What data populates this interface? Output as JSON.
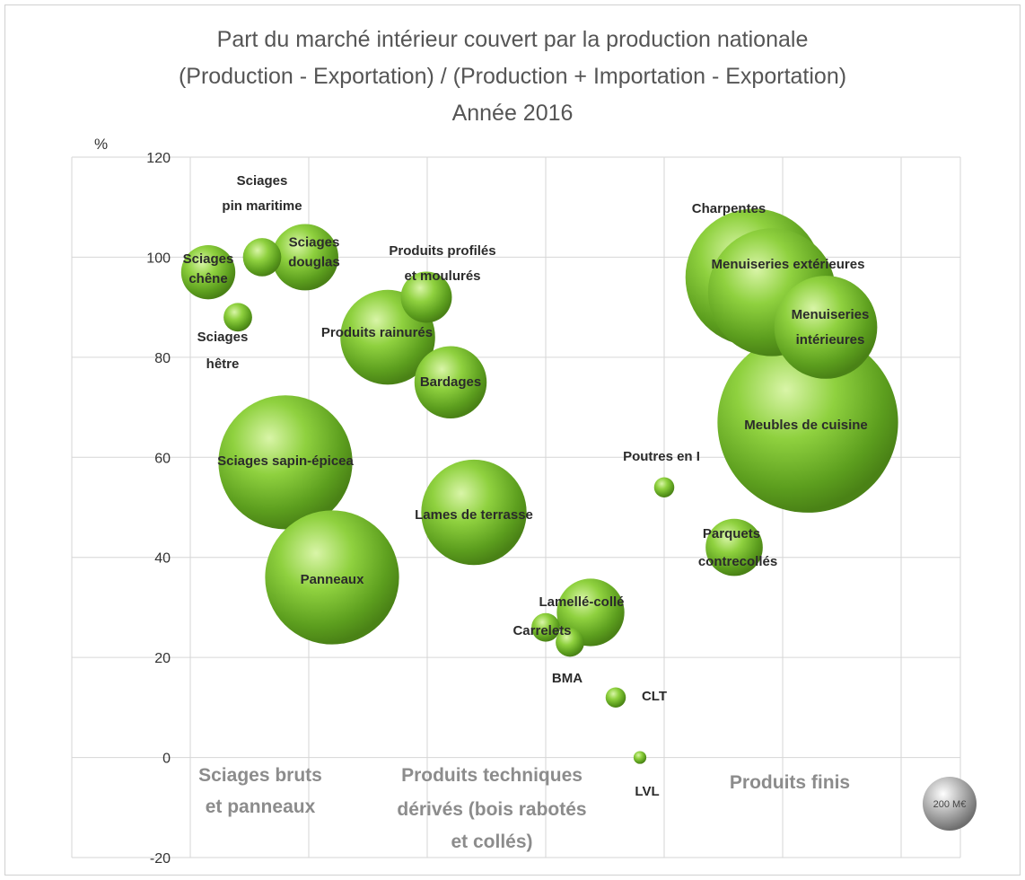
{
  "chart_data": {
    "type": "bubble",
    "title": [
      "Part du marché intérieur couvert par la production nationale",
      "(Production - Exportation) / (Production + Importation - Exportation)",
      "Année 2016"
    ],
    "ylabel": "%",
    "ylim": [
      -20,
      120
    ],
    "yticks": [
      -20,
      0,
      20,
      40,
      60,
      80,
      100,
      120
    ],
    "grid": true,
    "groups": [
      {
        "label": [
          "Sciages bruts",
          "et panneaux"
        ]
      },
      {
        "label": [
          "Produits techniques",
          "dérivés (bois rabotés",
          "et collés)"
        ]
      },
      {
        "label": [
          "Produits finis"
        ]
      }
    ],
    "size_legend": "200 M€",
    "bubble_color": "#7ec832",
    "legend_color": "#9a9a9a",
    "points": [
      {
        "label": [
          "Sciages",
          "chêne"
        ],
        "y": 97,
        "size": 180
      },
      {
        "label": [
          "Sciages",
          "pin maritime"
        ],
        "y": 100,
        "size": 90
      },
      {
        "label": [
          "Sciages",
          "douglas"
        ],
        "y": 100,
        "size": 270
      },
      {
        "label": [
          "Sciages",
          "hêtre"
        ],
        "y": 88,
        "size": 50
      },
      {
        "label": [
          "Sciages sapin-épicea"
        ],
        "y": 59,
        "size": 1100
      },
      {
        "label": [
          "Panneaux"
        ],
        "y": 36,
        "size": 1100
      },
      {
        "label": [
          "Produits profilés",
          "et moulurés"
        ],
        "y": 92,
        "size": 160
      },
      {
        "label": [
          "Produits rainurés"
        ],
        "y": 84,
        "size": 550
      },
      {
        "label": [
          "Bardages"
        ],
        "y": 75,
        "size": 320
      },
      {
        "label": [
          "Lames de terrasse"
        ],
        "y": 49,
        "size": 680
      },
      {
        "label": [
          "Lamellé-collé"
        ],
        "y": 29,
        "size": 280
      },
      {
        "label": [
          "Carrelets"
        ],
        "y": 26,
        "size": 50
      },
      {
        "label": [
          "BMA"
        ],
        "y": 23,
        "size": 50
      },
      {
        "label": [
          "CLT"
        ],
        "y": 12,
        "size": 25
      },
      {
        "label": [
          "LVL"
        ],
        "y": 0,
        "size": 10
      },
      {
        "label": [
          "Poutres en I"
        ],
        "y": 54,
        "size": 25
      },
      {
        "label": [
          "Parquets",
          "contrecollés"
        ],
        "y": 42,
        "size": 200
      },
      {
        "label": [
          "Charpentes"
        ],
        "y": 96,
        "size": 1150
      },
      {
        "label": [
          "Menuiseries extérieures"
        ],
        "y": 93,
        "size": 1000
      },
      {
        "label": [
          "Menuiseries",
          "intérieures"
        ],
        "y": 86,
        "size": 650
      },
      {
        "label": [
          "Meubles de cuisine"
        ],
        "y": 67,
        "size": 2000
      }
    ]
  }
}
